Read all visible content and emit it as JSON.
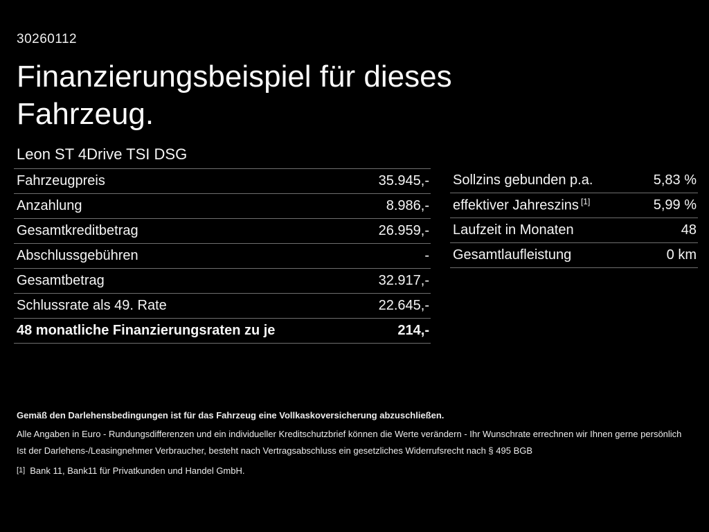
{
  "page": {
    "background": "#000000",
    "text_color": "#f5f5f5",
    "divider_color": "#6f6f6f"
  },
  "header": {
    "doc_number": "30260112",
    "title": "Finanzierungsbeispiel für dieses Fahrzeug.",
    "vehicle": "Leon ST 4Drive TSI DSG"
  },
  "finance_table": {
    "rows": [
      {
        "label": "Fahrzeugpreis",
        "value": "35.945,-"
      },
      {
        "label": "Anzahlung",
        "value": "8.986,-"
      },
      {
        "label": "Gesamtkreditbetrag",
        "value": "26.959,-"
      },
      {
        "label": "Abschlussgebühren",
        "value": "-"
      },
      {
        "label": "Gesamtbetrag",
        "value": "32.917,-"
      },
      {
        "label": "Schlussrate als 49. Rate",
        "value": "22.645,-"
      },
      {
        "label": "48 monatliche Finanzierungsraten zu je",
        "value": "214,-"
      }
    ]
  },
  "terms_table": {
    "rows": [
      {
        "label": "Sollzins gebunden p.a.",
        "value": "5,83 %"
      },
      {
        "label": "effektiver Jahreszins",
        "footnote": "[1]",
        "value": "5,99 %"
      },
      {
        "label": "Laufzeit in Monaten",
        "value": "48"
      },
      {
        "label": "Gesamtlaufleistung",
        "value": "0 km"
      }
    ]
  },
  "footer": {
    "insurance_note": "Gemäß den Darlehensbedingungen ist für das Fahrzeug eine Vollkaskoversicherung abzuschließen.",
    "disclaimer_1": "Alle Angaben in Euro - Rundungsdifferenzen und ein individueller Kreditschutzbrief können die Werte verändern - Ihr Wunschrate errechnen wir Ihnen gerne persönlich",
    "disclaimer_2": "Ist der Darlehens-/Leasingnehmer Verbraucher, besteht nach Vertragsabschluss ein gesetzliches Widerrufsrecht nach § 495 BGB",
    "footnote_marker": "[1]",
    "footnote_text": "Bank 11, Bank11 für Privatkunden und Handel GmbH."
  }
}
